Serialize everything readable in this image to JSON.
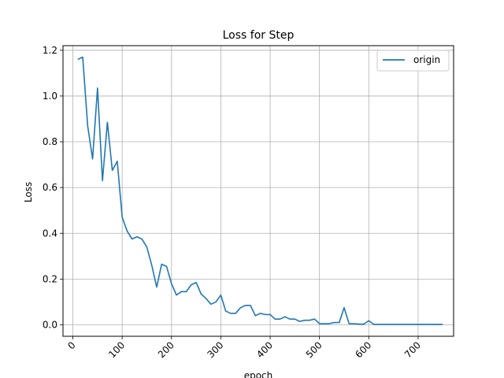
{
  "chart_data": {
    "type": "line",
    "title": "Loss for Step",
    "xlabel": "epoch",
    "ylabel": "Loss",
    "xlim": [
      -20,
      772
    ],
    "ylim": [
      -0.05,
      1.22
    ],
    "xticks": [
      0,
      100,
      200,
      300,
      400,
      500,
      600,
      700
    ],
    "xtick_labels": [
      "0",
      "100",
      "200",
      "300",
      "400",
      "500",
      "600",
      "700"
    ],
    "yticks": [
      0.0,
      0.2,
      0.4,
      0.6,
      0.8,
      1.0,
      1.2
    ],
    "ytick_labels": [
      "0.0",
      "0.2",
      "0.4",
      "0.6",
      "0.8",
      "1.0",
      "1.2"
    ],
    "grid": true,
    "legend_position": "top-right",
    "series": [
      {
        "name": "origin",
        "color": "#1f77b4",
        "x": [
          10,
          20,
          30,
          40,
          50,
          60,
          70,
          80,
          90,
          100,
          110,
          120,
          130,
          140,
          150,
          160,
          170,
          180,
          190,
          200,
          210,
          220,
          230,
          240,
          250,
          260,
          270,
          280,
          290,
          300,
          310,
          320,
          330,
          340,
          350,
          360,
          370,
          380,
          390,
          400,
          410,
          420,
          430,
          440,
          450,
          460,
          470,
          480,
          490,
          500,
          510,
          520,
          530,
          540,
          550,
          560,
          570,
          580,
          590,
          600,
          610,
          620,
          630,
          640,
          650,
          660,
          670,
          680,
          690,
          700,
          710,
          720,
          730,
          740,
          750
        ],
        "y": [
          1.16,
          1.17,
          0.87,
          0.725,
          1.035,
          0.63,
          0.885,
          0.675,
          0.715,
          0.47,
          0.41,
          0.375,
          0.385,
          0.375,
          0.34,
          0.26,
          0.165,
          0.265,
          0.255,
          0.18,
          0.13,
          0.145,
          0.145,
          0.175,
          0.185,
          0.135,
          0.115,
          0.09,
          0.1,
          0.13,
          0.06,
          0.05,
          0.05,
          0.075,
          0.085,
          0.085,
          0.04,
          0.05,
          0.045,
          0.045,
          0.025,
          0.025,
          0.035,
          0.025,
          0.025,
          0.015,
          0.02,
          0.02,
          0.025,
          0.005,
          0.005,
          0.005,
          0.01,
          0.01,
          0.075,
          0.005,
          0.005,
          0.003,
          0.003,
          0.018,
          0.002,
          0.002,
          0.002,
          0.002,
          0.002,
          0.002,
          0.002,
          0.002,
          0.002,
          0.002,
          0.002,
          0.002,
          0.002,
          0.002,
          0.002
        ]
      }
    ]
  }
}
